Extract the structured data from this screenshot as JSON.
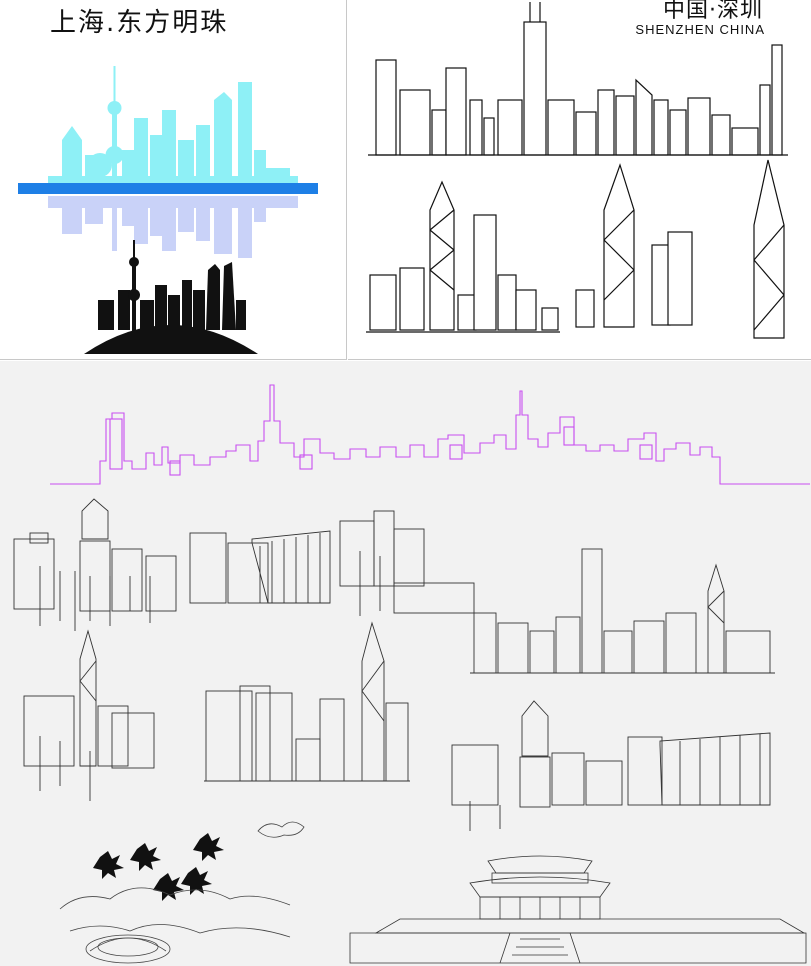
{
  "shanghai": {
    "title": "上海.东方明珠",
    "colors": {
      "skyline": "#8ef0f6",
      "water": "#1e7fe6",
      "reflection": "#c9d2f8",
      "silhouette": "#111111"
    }
  },
  "shenzhen": {
    "title": "中国·深圳",
    "subtitle": "SHENZHEN CHINA",
    "colors": {
      "ink": "#111111"
    }
  },
  "lineart": {
    "colors": {
      "purple": "#c84ff0",
      "ink": "#333333"
    }
  }
}
